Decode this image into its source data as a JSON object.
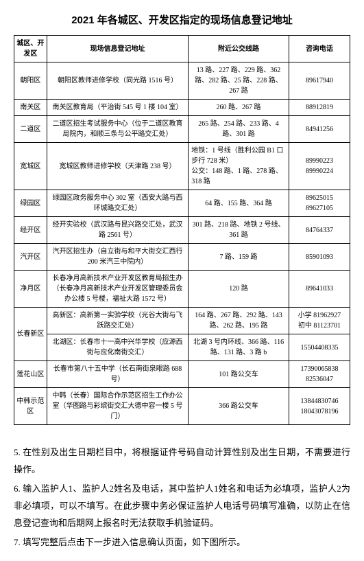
{
  "title": "2021 年各城区、开发区指定的现场信息登记地址",
  "headers": {
    "district": "城区、开发区",
    "address": "现场信息登记地址",
    "bus": "附近公交线路",
    "phone": "咨询电话"
  },
  "rows": [
    {
      "district": "朝阳区",
      "address": "朝阳区教师进修学校（同光路 1516 号）",
      "bus": "13 路、227 路、229 路、362 路、282 路、25 路、228 路、267 路",
      "phone": "89617940"
    },
    {
      "district": "南关区",
      "address": "南关区教育局（平治街 545 号 1 楼 104 室）",
      "bus": "260 路、267 路",
      "phone": "88912819"
    },
    {
      "district": "二道区",
      "address": "二道区招生考试服务中心（位于二道区教育局院内，和顺三条与公平路交汇处）",
      "bus": "265 路、254 路、233 路、4 路、301 路",
      "phone": "84941256"
    },
    {
      "district": "宽城区",
      "address": "宽城区教师进修学校（天津路 238 号）",
      "bus": "地铁：1 号线（胜利公园 B1 口步行 728 米）\n公交：148 路、1 路、278 路、318 路",
      "phone": "89990223\n89990224"
    },
    {
      "district": "绿园区",
      "address": "绿园区政务服务中心 302 室（西安大路与西环城路交汇处）",
      "bus": "64 路、155 路、364 路",
      "phone": "89625015\n89627105"
    },
    {
      "district": "经开区",
      "address": "经开实验校（武汉路与昆兴路交汇处，武汉路 2561 号）",
      "bus": "301 路、218 路、地铁 2 号线、361 路",
      "phone": "84764337"
    },
    {
      "district": "汽开区",
      "address": "汽开区招生办（自立街与和平大街交汇西行 200 米汽三中院内）",
      "bus": "7 路、159 路",
      "phone": "85901093"
    },
    {
      "district": "净月区",
      "address": "长春净月高新技术产业开发区教育局招生办\n（长春净月高新技术产业开发区管理委员会办公楼 5 号楼，福祉大路 1572 号）",
      "bus": "120 路",
      "phone": "89641033"
    },
    {
      "district": "长春新区",
      "rowspan": 2,
      "address": "高新区：高新第一实验学校（光谷大街与飞跃路交汇处）",
      "bus": "164 路、267 路、292 路、143 路、262 路、195 路",
      "phone": "小学 81962927\n初中 81123701"
    },
    {
      "address": "北湖区：长春市十一高中兴华学校（应源西街与应化南街交汇）",
      "bus": "北湖 3 号内环线、366 路、116 路、131 路、3 路 b",
      "phone": "15504408335"
    },
    {
      "district": "莲花山区",
      "address": "长春市第八十五中学（长石南街泉眼路 688 号）",
      "bus": "101 路公交车",
      "phone": "17390065838\n82536047"
    },
    {
      "district": "中韩示范区",
      "address": "中韩（长春）国际合作示范区招生工作办公室（华图路与彩缤街交汇大德中容一楼 5 号门）",
      "bus": "366 路公交车",
      "phone": "13844830746\n18043078196"
    }
  ],
  "paragraphs": {
    "p5": "5. 在性别及出生日期栏目中，将根据证件号码自动计算性别及出生日期，不需要进行操作。",
    "p6": "6. 输入监护人1、监护人2姓名及电话，其中监护人1姓名和电话为必填项，监护人2为非必填项，可以不填写。在此步骤中务必保证监护人电话号码填写准确，以防止在信息登记查询和后期网上报名时无法获取手机验证码。",
    "p7": "7. 填写完整后点击下一步进入信息确认页面，如下图所示。"
  }
}
